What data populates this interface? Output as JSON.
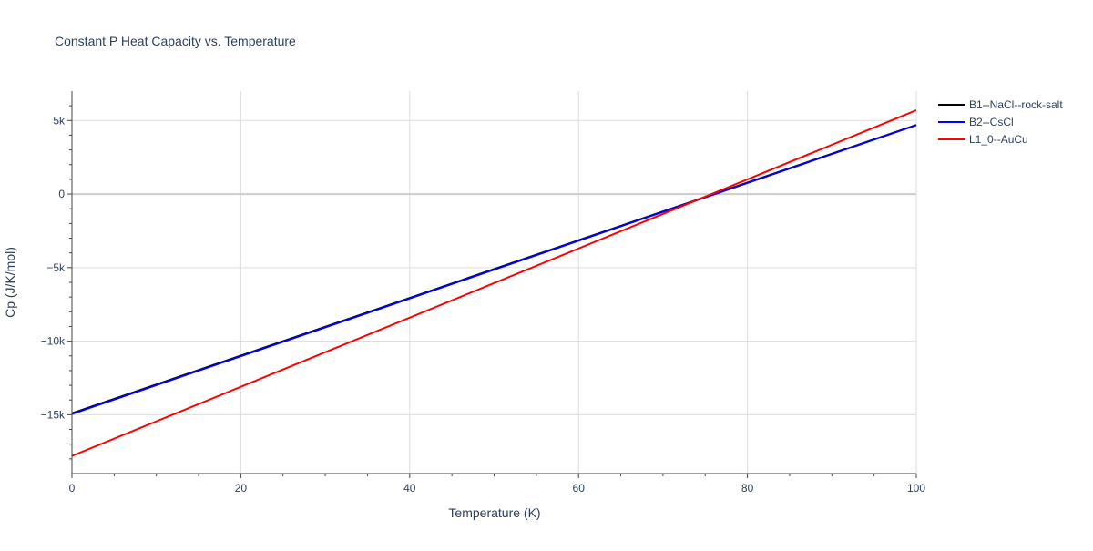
{
  "chart_data": {
    "type": "line",
    "title": "Constant P Heat Capacity vs. Temperature",
    "xlabel": "Temperature (K)",
    "ylabel": "Cp (J/K/mol)",
    "xlim": [
      0,
      100
    ],
    "ylim": [
      -19000,
      7000
    ],
    "x_ticks": [
      0,
      20,
      40,
      60,
      80,
      100
    ],
    "x_tick_labels": [
      "0",
      "20",
      "40",
      "60",
      "80",
      "100"
    ],
    "y_ticks": [
      -15000,
      -10000,
      -5000,
      0,
      5000
    ],
    "y_tick_labels": [
      "−15k",
      "−10k",
      "−5k",
      "0",
      "5k"
    ],
    "grid": true,
    "legend_position": "top-right",
    "series": [
      {
        "name": "B1--NaCl--rock-salt",
        "color": "#000000",
        "x": [
          0,
          100
        ],
        "y": [
          -14900,
          4700
        ]
      },
      {
        "name": "B2--CsCl",
        "color": "#0000ff",
        "x": [
          0,
          100
        ],
        "y": [
          -14950,
          4680
        ]
      },
      {
        "name": "L1_0--AuCu",
        "color": "#ff0000",
        "x": [
          0,
          100
        ],
        "y": [
          -17800,
          5700
        ]
      }
    ]
  }
}
